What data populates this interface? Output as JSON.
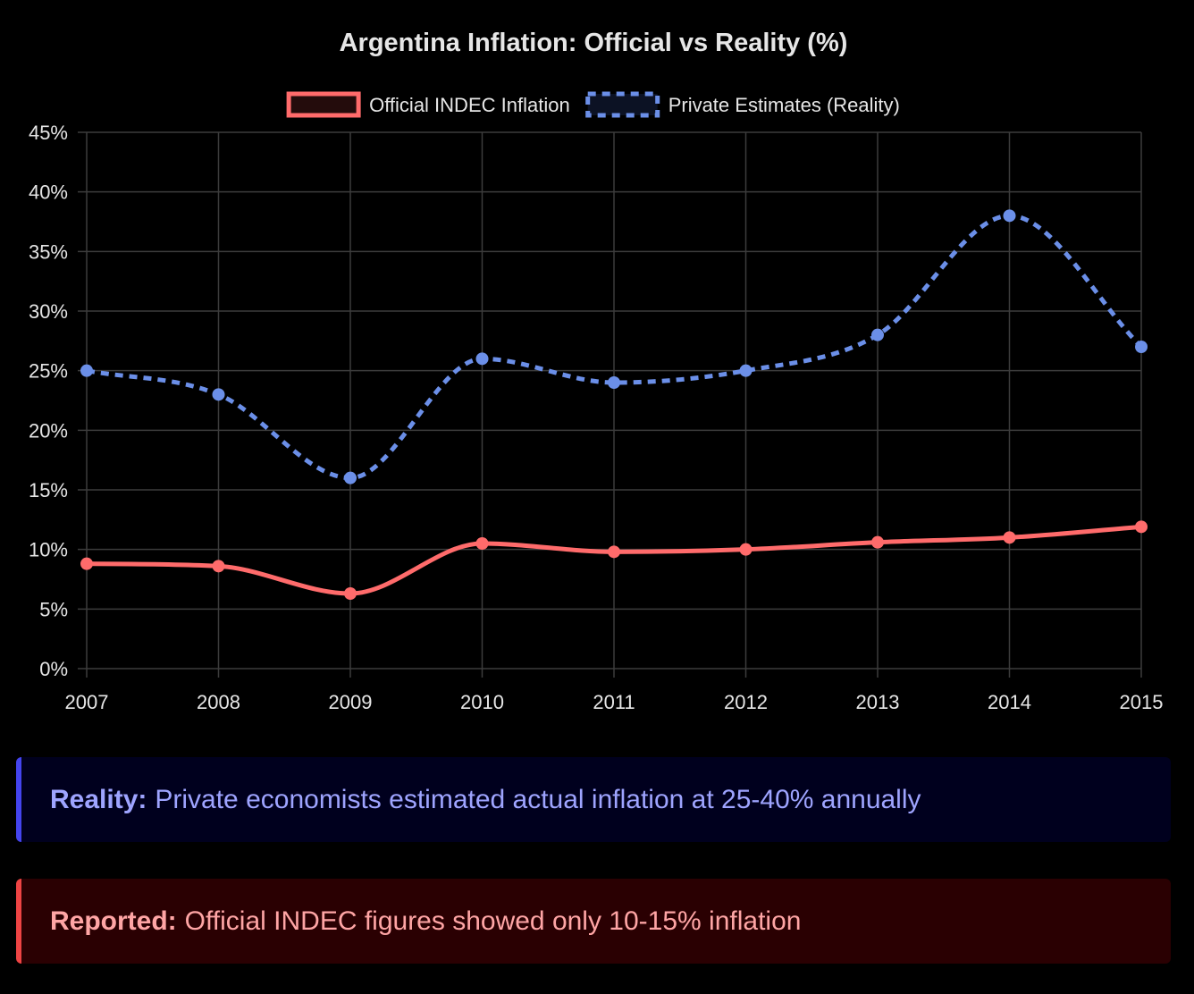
{
  "chart_data": {
    "type": "line",
    "title": "Argentina Inflation: Official vs Reality (%)",
    "xlabel": "",
    "ylabel": "",
    "categories": [
      "2007",
      "2008",
      "2009",
      "2010",
      "2011",
      "2012",
      "2013",
      "2014",
      "2015"
    ],
    "ylim": [
      0,
      45
    ],
    "y_ticks": [
      "0%",
      "5%",
      "10%",
      "15%",
      "20%",
      "25%",
      "30%",
      "35%",
      "40%",
      "45%"
    ],
    "grid": true,
    "legend_position": "top",
    "series": [
      {
        "name": "Official INDEC Inflation",
        "values": [
          8.8,
          8.6,
          6.3,
          10.5,
          9.8,
          10.0,
          10.6,
          11.0,
          11.9
        ],
        "color": "#ff6b6b",
        "dashed": false
      },
      {
        "name": "Private Estimates (Reality)",
        "values": [
          25,
          23,
          16,
          26,
          24,
          25,
          28,
          38,
          27
        ],
        "color": "#6b8fe8",
        "dashed": true
      }
    ]
  },
  "callouts": {
    "reality": {
      "label": "Reality:",
      "text": "Private economists estimated actual inflation at 25-40% annually",
      "accent": "#4444ee"
    },
    "reported": {
      "label": "Reported:",
      "text": "Official INDEC figures showed only 10-15% inflation",
      "accent": "#ee4444"
    }
  }
}
